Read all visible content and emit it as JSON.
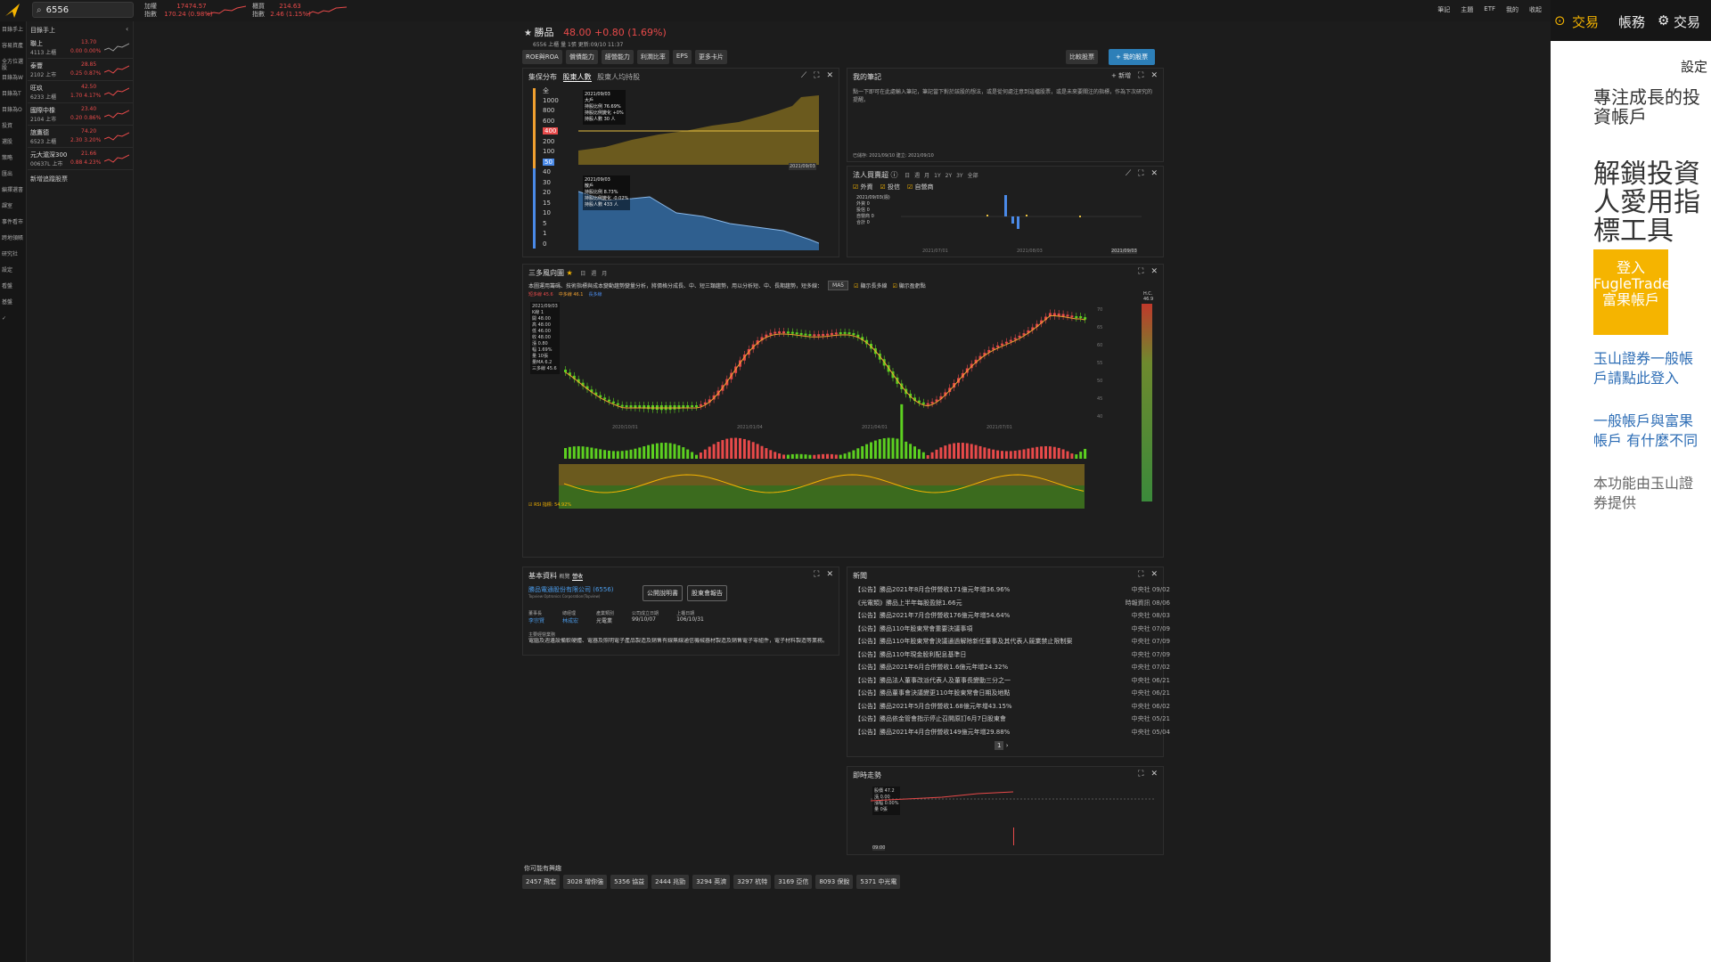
{
  "app": {
    "search_value": "6556",
    "indices": [
      {
        "name1": "加權",
        "name2": "指數",
        "value": "17474.57",
        "change": "170.24 (0.98%)"
      },
      {
        "name1": "櫃買",
        "name2": "指數",
        "value": "214.63",
        "change": "2.46 (1.15%)"
      }
    ],
    "top_links": [
      "筆記",
      "主題",
      "ETF",
      "我的",
      "收起"
    ]
  },
  "leftnav": [
    "目錄手上",
    "容易資產",
    "全方位選股",
    "目錄為W",
    "目錄為T",
    "目錄為O",
    "投資",
    "選股",
    "策略",
    "匯出",
    "編擇選書",
    "課室",
    "事件看市",
    "跨地領賬",
    "研究社",
    "設定",
    "看盤",
    "基盤",
    "✓"
  ],
  "watchlist": {
    "title": "目錄手上",
    "items": [
      {
        "name": "聯上",
        "code": "4113 上櫃",
        "price": "13.70",
        "change": "0.00 0.00%"
      },
      {
        "name": "泰豐",
        "code": "2102 上市",
        "price": "28.85",
        "change": "0.25 0.87%"
      },
      {
        "name": "旺玖",
        "code": "6233 上櫃",
        "price": "42.50",
        "change": "1.70 4.17%"
      },
      {
        "name": "國際中橡",
        "code": "2104 上市",
        "price": "23.40",
        "change": "0.20 0.86%"
      },
      {
        "name": "誼鷹德",
        "code": "6523 上櫃",
        "price": "74.20",
        "change": "2.30 3.20%"
      },
      {
        "name": "元大滬深300",
        "code": "00637L 上市",
        "price": "21.66",
        "change": "0.88 4.23%"
      }
    ],
    "add_label": "新增追蹤股票"
  },
  "stock": {
    "name": "勝品",
    "price_change": "48.00 +0.80 (1.69%)",
    "code_line": "6556 上櫃",
    "chain": "量 1張",
    "update": "更新:09/10 11:37",
    "tabs": [
      "ROE與ROA",
      "償債能力",
      "經營能力",
      "利潤比率",
      "EPS",
      "更多卡片"
    ],
    "btn_compare": "比較股票",
    "btn_mine": "+ 我的股票"
  },
  "panels": {
    "holder": {
      "title": "集保分布",
      "tab1": "股東人數",
      "tab2": "股東人均持股",
      "levels": [
        "全",
        "1000",
        "800",
        "600",
        "400",
        "200",
        "100",
        "50",
        "40",
        "30",
        "20",
        "15",
        "10",
        "5",
        "1",
        "0"
      ],
      "tip1_date": "2021/09/03",
      "tip1_label": "大戶",
      "tip1_l1": "持股比例",
      "tip1_v1": "76.69%",
      "tip1_l2": "持股比例變化",
      "tip1_v2": "+0%",
      "tip1_l3": "持股人數",
      "tip1_v3": "30 人",
      "tip2_date": "2021/09/03",
      "tip2_label": "散戶",
      "tip2_l1": "持股比例",
      "tip2_v1": "8.73%",
      "tip2_l2": "持股比例變化",
      "tip2_v2": "-0.02%",
      "tip2_l3": "持股人數",
      "tip2_v3": "433 人",
      "date_end": "2021/09/03"
    },
    "notes": {
      "title": "我的筆記",
      "add": "+ 新增",
      "body": "點一下即可在此處輸入筆記，筆記當下對於該股的想法，或是從何處注意到這檔股票，或是未來要關注的指標，作為下次研究的提醒。",
      "created": "已儲存: 2021/09/10",
      "built": "建立: 2021/09/10"
    },
    "institutional": {
      "title": "法人買賣超",
      "periods": [
        "日",
        "週",
        "月",
        "1Y",
        "2Y",
        "3Y",
        "全部"
      ],
      "checks": [
        "外資",
        "投信",
        "自營商"
      ],
      "tip_date": "2021/09/03(週)",
      "tip_rows": [
        {
          "k": "外資",
          "v": "0"
        },
        {
          "k": "投信",
          "v": "0"
        },
        {
          "k": "自營商",
          "v": "0"
        },
        {
          "k": "合計",
          "v": "0"
        }
      ],
      "axis_date1": "2021/07/01",
      "axis_date2": "2021/08/03",
      "axis_date3": "2021/09/03"
    },
    "trend": {
      "title": "三多風向圖",
      "periods": [
        "日",
        "週",
        "月"
      ],
      "desc": "本圖運用籌碼、技術指標與成本變動趨勢變量分析，將價格分成長、中、短三類趨勢，用以分析短、中、長期趨勢，短多線：",
      "ma_select": "MA5",
      "check1": "顯示長多線",
      "check2": "顯示盈虧點",
      "legend": [
        {
          "name": "短多線",
          "val": "45.6",
          "color": "#e84a4a"
        },
        {
          "name": "中多線",
          "val": "46.1",
          "color": "#f0a030"
        },
        {
          "name": "長多線",
          "val": "",
          "color": "#4a8ae8"
        }
      ],
      "tip_date": "2021/09/03",
      "tip_rows": [
        {
          "k": "K線",
          "v": "1"
        },
        {
          "k": "開",
          "v": "48.00"
        },
        {
          "k": "高",
          "v": "48.00"
        },
        {
          "k": "低",
          "v": "46.00"
        },
        {
          "k": "收",
          "v": "48.00"
        },
        {
          "k": "漲",
          "v": "0.80"
        },
        {
          "k": "幅",
          "v": "1.69%"
        },
        {
          "k": "量",
          "v": "10張"
        },
        {
          "k": "量MA",
          "v": "6.2"
        },
        {
          "k": "三多線",
          "v": "45.6"
        }
      ],
      "dates": [
        "2020/10/01",
        "2021/01/04",
        "2021/04/01",
        "2021/07/01"
      ],
      "axis_right": [
        "70",
        "65",
        "60",
        "55",
        "50",
        "45",
        "40"
      ],
      "indicator_label": "RSI 指標: 54.92%",
      "hc_label": "H.C.",
      "hc_value": "46.9"
    },
    "basic": {
      "title": "基本資料",
      "tab1": "概覽",
      "tab2": "營收",
      "company": "勝品電通股份有限公司 (6556)",
      "company_en": "Topview Optronics Corporation(Topview)",
      "btn1": "公開說明書",
      "btn2": "股東會報告",
      "cols": [
        {
          "k": "董事長",
          "v": "李宗賢"
        },
        {
          "k": "總經理",
          "v": "林成宏"
        },
        {
          "k": "產業類別",
          "v": "光電業"
        },
        {
          "k": "公司成立日期",
          "v": "99/10/07"
        },
        {
          "k": "上櫃日期",
          "v": "106/10/31"
        }
      ],
      "biz_label": "主要經營業務",
      "biz": "電腦及週邊設備軟硬體、電器及照明電子產品製造及銷售有線無線通信機械器材製造及銷售電子零組件，電子材料製造等業務。"
    },
    "news": {
      "title": "新聞",
      "items": [
        {
          "t": "【公告】勝品2021年8月合併營收171億元年增36.96%",
          "s": "中央社",
          "d": "09/02"
        },
        {
          "t": "《光電類》勝品上半年每股盈餘1.66元",
          "s": "時報資訊",
          "d": "08/06"
        },
        {
          "t": "【公告】勝品2021年7月合併營收176億元年增54.64%",
          "s": "中央社",
          "d": "08/03"
        },
        {
          "t": "【公告】勝品110年股東常會重要決議事項",
          "s": "中央社",
          "d": "07/09"
        },
        {
          "t": "【公告】勝品110年股東常會決議通過解除新任董事及其代表人競業禁止限制案",
          "s": "中央社",
          "d": "07/09"
        },
        {
          "t": "【公告】勝品110年現金股利配息基準日",
          "s": "中央社",
          "d": "07/09"
        },
        {
          "t": "【公告】勝品2021年6月合併營收1.6億元年增24.32%",
          "s": "中央社",
          "d": "07/02"
        },
        {
          "t": "【公告】勝品法人董事改派代表人及董事長變動三分之一",
          "s": "中央社",
          "d": "06/21"
        },
        {
          "t": "【公告】勝品董事會決議變更110年股東常會日期及地點",
          "s": "中央社",
          "d": "06/21"
        },
        {
          "t": "【公告】勝品2021年5月合併營收1.68億元年增43.15%",
          "s": "中央社",
          "d": "06/02"
        },
        {
          "t": "【公告】勝品依金管會指示停止召開原訂6月7日股東會",
          "s": "中央社",
          "d": "05/21"
        },
        {
          "t": "【公告】勝品2021年4月合併營收149億元年增29.88%",
          "s": "中央社",
          "d": "05/04"
        }
      ],
      "page": "1",
      "next": "›"
    },
    "intraday": {
      "title": "即時走勢",
      "price_label": "股價",
      "price": "47.2",
      "rows": [
        {
          "k": "漲",
          "v": "0.00"
        },
        {
          "k": "漲幅",
          "v": "0.00%"
        },
        {
          "k": "量",
          "v": "0張"
        }
      ],
      "axis_time": "09:00"
    }
  },
  "related": {
    "title": "你可能有興趣",
    "items": [
      "2457 飛宏",
      "3028 增你強",
      "5356 協益",
      "2444 兆勁",
      "3294 英濟",
      "3297 杭特",
      "3169 亞信",
      "8093 保銳",
      "5371 中光電"
    ]
  },
  "sidebar_right": {
    "top_trade": "交易",
    "top_account": "帳務",
    "top_settings": "交易",
    "settings_label": "設定",
    "headline": "專注成長的投資帳戶",
    "big": "解鎖投資人愛用指標工具",
    "login": "登入 FugleTrade 富果帳戶",
    "link1": "玉山證券一般帳戶請點此登入",
    "link2": "一般帳戶與富果帳戶 有什麼不同",
    "provider": "本功能由玉山證券提供"
  }
}
